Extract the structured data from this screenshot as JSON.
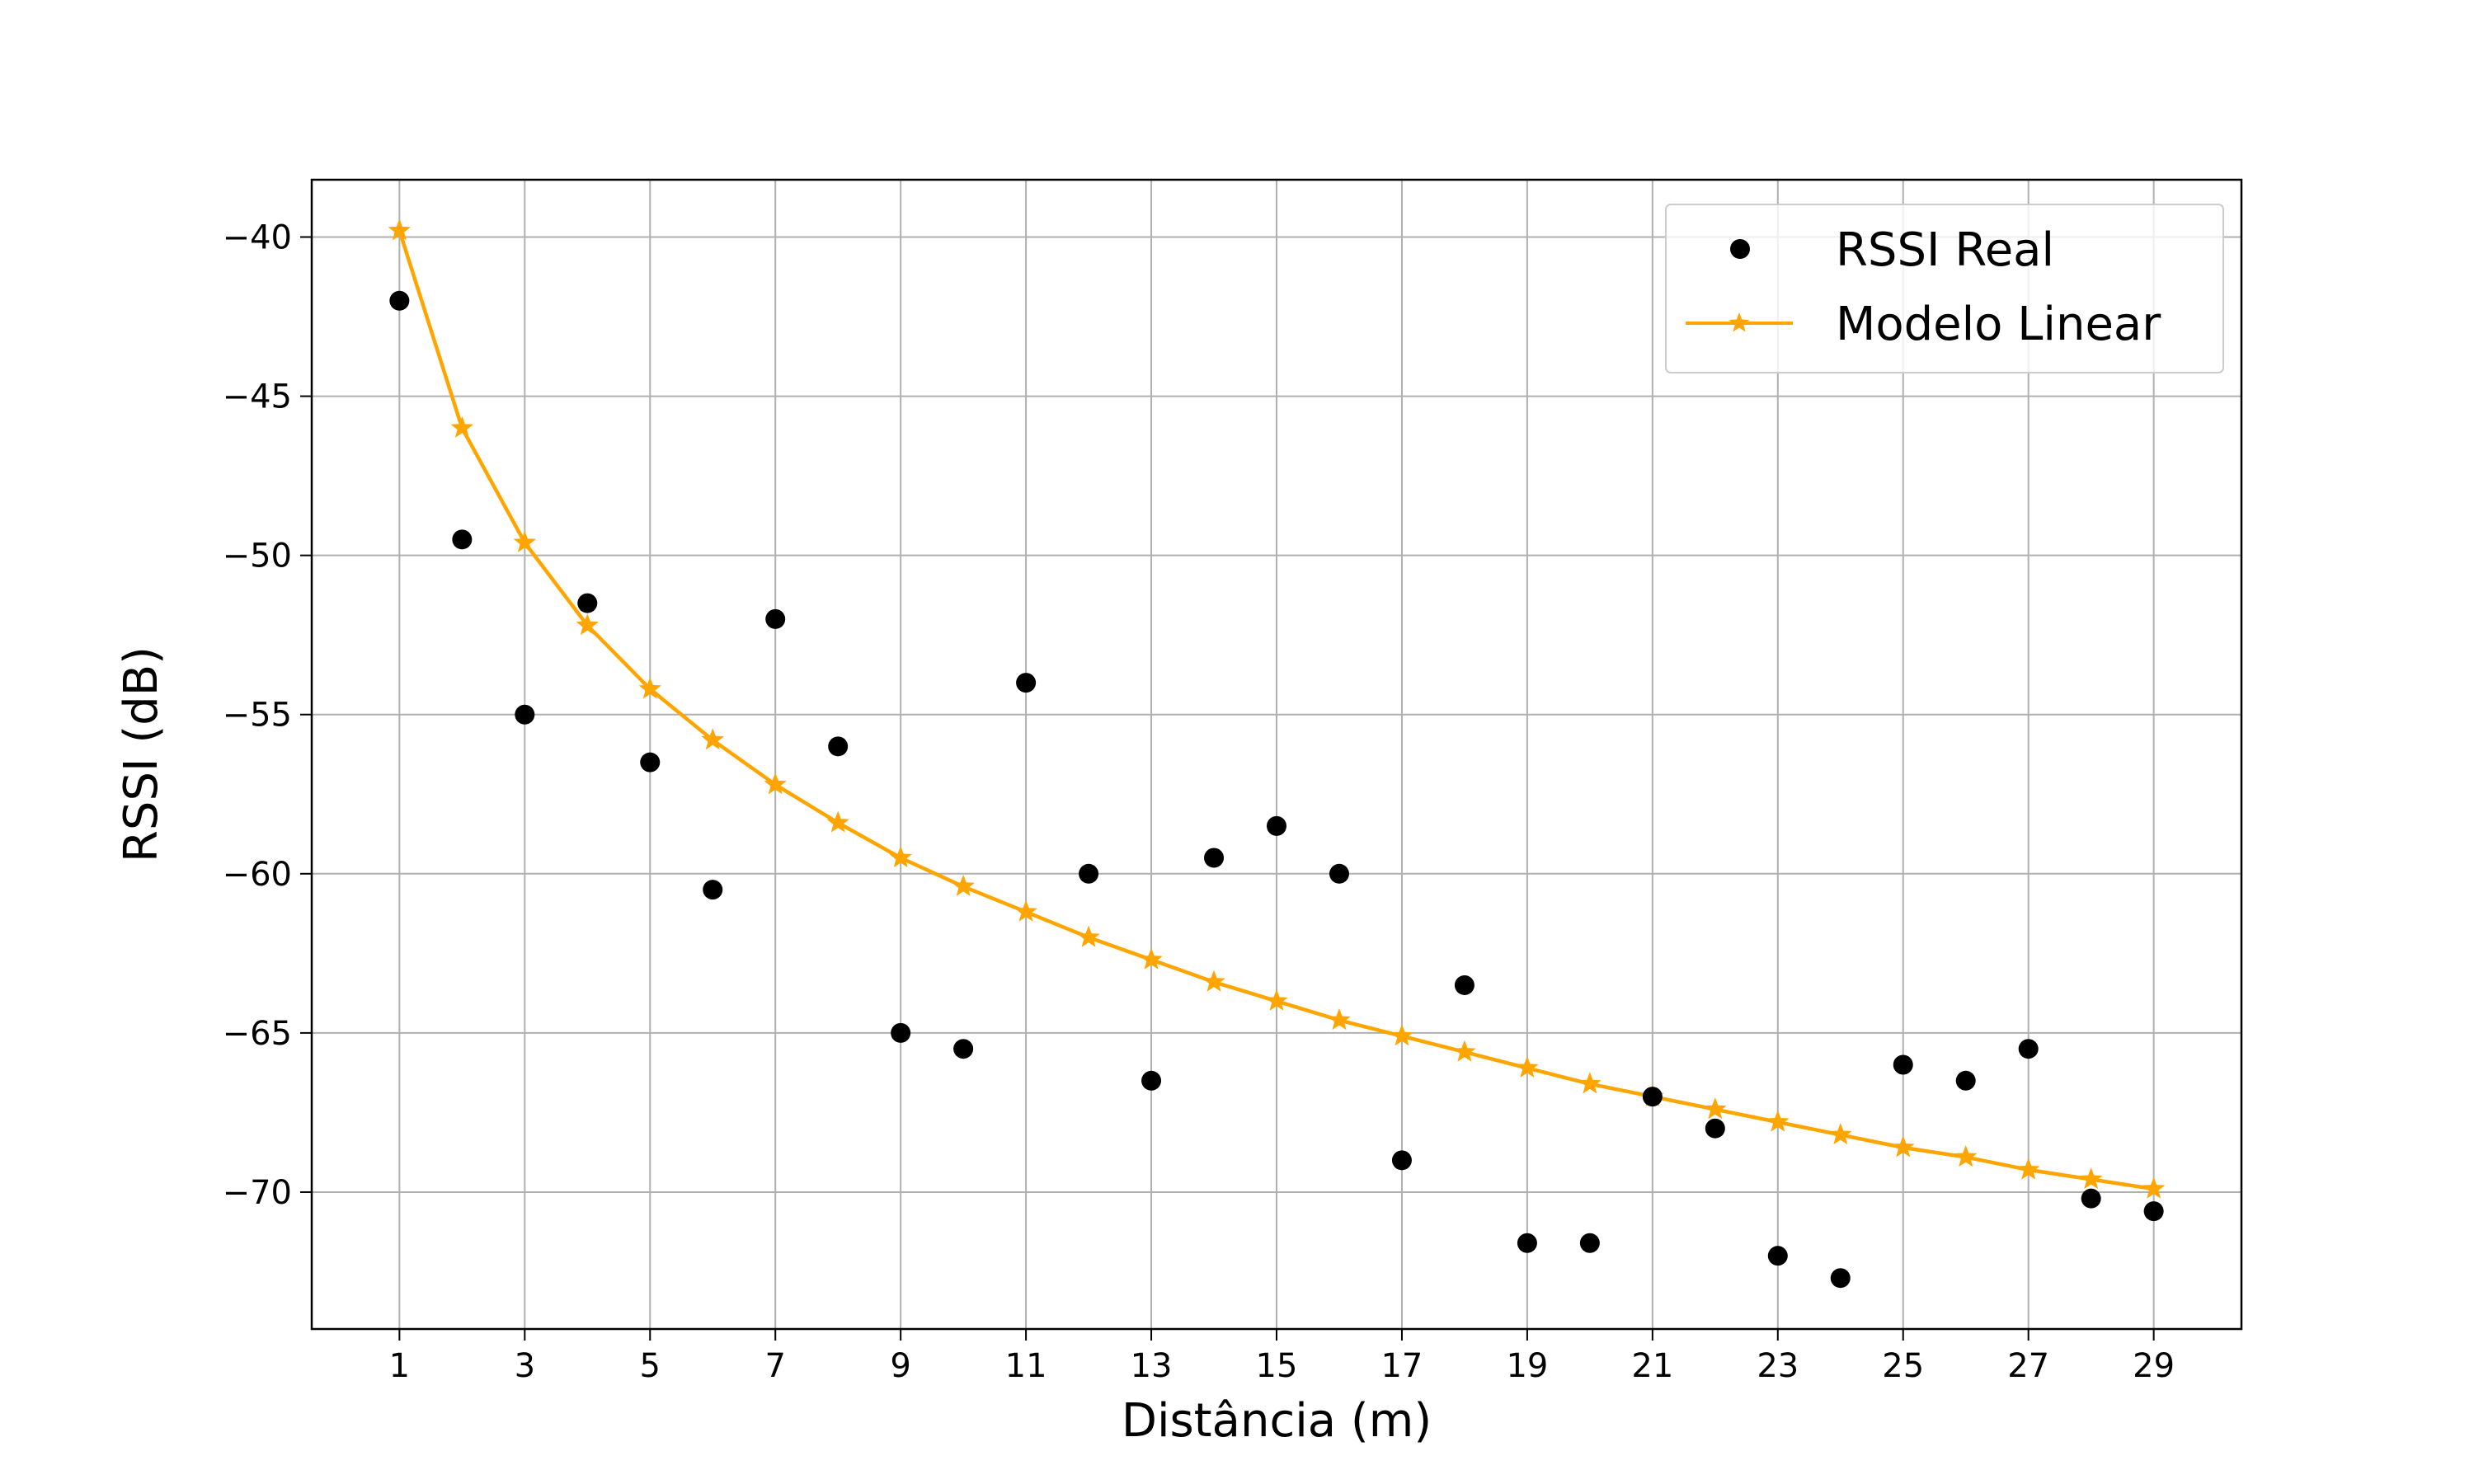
{
  "chart_data": {
    "type": "scatter",
    "title": "",
    "xlabel": "Distância (m)",
    "ylabel": "RSSI (dB)",
    "xlim": [
      -0.4,
      30.4
    ],
    "ylim": [
      -74.3,
      -38.2
    ],
    "xticks": [
      1,
      3,
      5,
      7,
      9,
      11,
      13,
      15,
      17,
      19,
      21,
      23,
      25,
      27,
      29
    ],
    "yticks": [
      -40,
      -45,
      -50,
      -55,
      -60,
      -65,
      -70
    ],
    "grid": true,
    "legend_position": "top-right",
    "series": [
      {
        "name": "RSSI Real",
        "kind": "scatter",
        "color": "#000000",
        "marker": "circle",
        "x": [
          1,
          2,
          3,
          4,
          5,
          6,
          7,
          8,
          9,
          10,
          11,
          12,
          13,
          14,
          15,
          16,
          17,
          18,
          19,
          20,
          21,
          22,
          23,
          24,
          25,
          26,
          27,
          28,
          29
        ],
        "y": [
          -42,
          -49.5,
          -55,
          -51.5,
          -56.5,
          -60.5,
          -52,
          -56,
          -65,
          -65.5,
          -54,
          -60,
          -66.5,
          -59.5,
          -58.5,
          -60,
          -69,
          -63.5,
          -71.6,
          -71.6,
          -67,
          -68,
          -72,
          -72.7,
          -66,
          -66.5,
          -65.5,
          -70.2,
          -70.6
        ]
      },
      {
        "name": "Modelo Linear",
        "kind": "line",
        "color": "#FFA500",
        "marker": "star",
        "x": [
          1,
          2,
          3,
          4,
          5,
          6,
          7,
          8,
          9,
          10,
          11,
          12,
          13,
          14,
          15,
          16,
          17,
          18,
          19,
          20,
          21,
          22,
          23,
          24,
          25,
          26,
          27,
          28,
          29
        ],
        "y": [
          -39.8,
          -46.0,
          -49.6,
          -52.2,
          -54.2,
          -55.8,
          -57.2,
          -58.4,
          -59.5,
          -60.4,
          -61.2,
          -62.0,
          -62.7,
          -63.4,
          -64.0,
          -64.6,
          -65.1,
          -65.6,
          -66.1,
          -66.6,
          -67.0,
          -67.4,
          -67.8,
          -68.2,
          -68.6,
          -68.9,
          -69.3,
          -69.6,
          -69.9
        ]
      }
    ]
  }
}
